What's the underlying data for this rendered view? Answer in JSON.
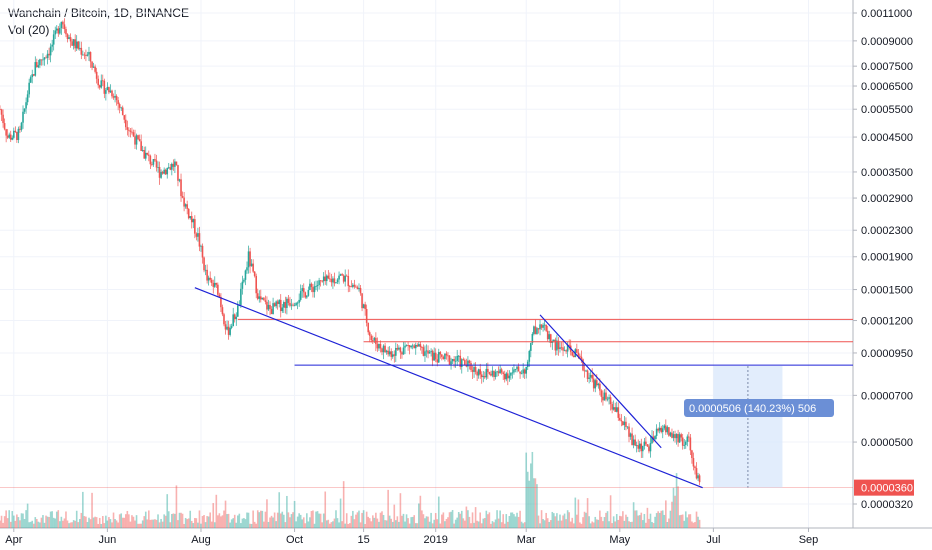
{
  "header": {
    "symbol_line": "Wanchain / Bitcoin, 1D, BINANCE",
    "volume_line": "Vol (20)"
  },
  "colors": {
    "up": "#26a69a",
    "down": "#ef5350",
    "trendline": "#1e22d6",
    "resistance": "#ef5350",
    "measure_fill": "#dbe8fb",
    "label_box": "#6b8fd6",
    "last_price_box": "#ef5350"
  },
  "chart_data": {
    "type": "candlestick",
    "title": "Wanchain / Bitcoin, 1D, BINANCE",
    "y_scale": "log",
    "y_ticks": [
      "0.0011000",
      "0.0009000",
      "0.0007500",
      "0.0006500",
      "0.0005500",
      "0.0004500",
      "0.0003500",
      "0.0002900",
      "0.0002300",
      "0.0001900",
      "0.0001500",
      "0.0001200",
      "0.0000950",
      "0.0000700",
      "0.0000500",
      "0.0000320"
    ],
    "x_ticks": [
      "Apr",
      "Jun",
      "Aug",
      "Oct",
      "15",
      "2019",
      "Mar",
      "May",
      "Jul",
      "Sep"
    ],
    "x_range": [
      "2018-03-23",
      "2019-09-30"
    ],
    "price_path": [
      [
        "2018-03-23",
        0.00055
      ],
      [
        "2018-03-28",
        0.00045
      ],
      [
        "2018-04-05",
        0.00046
      ],
      [
        "2018-04-10",
        0.00062
      ],
      [
        "2018-04-15",
        0.00075
      ],
      [
        "2018-04-25",
        0.00085
      ],
      [
        "2018-05-02",
        0.00105
      ],
      [
        "2018-05-08",
        0.0009
      ],
      [
        "2018-05-20",
        0.0008
      ],
      [
        "2018-05-28",
        0.00065
      ],
      [
        "2018-06-05",
        0.00062
      ],
      [
        "2018-06-15",
        0.00048
      ],
      [
        "2018-06-25",
        0.0004
      ],
      [
        "2018-07-05",
        0.00035
      ],
      [
        "2018-07-15",
        0.00037
      ],
      [
        "2018-07-20",
        0.00029
      ],
      [
        "2018-07-30",
        0.00022
      ],
      [
        "2018-08-05",
        0.00016
      ],
      [
        "2018-08-12",
        0.00015
      ],
      [
        "2018-08-18",
        0.00011
      ],
      [
        "2018-08-25",
        0.00013
      ],
      [
        "2018-09-01",
        0.00019
      ],
      [
        "2018-09-08",
        0.00014
      ],
      [
        "2018-09-15",
        0.00013
      ],
      [
        "2018-10-01",
        0.00014
      ],
      [
        "2018-10-15",
        0.000155
      ],
      [
        "2018-11-01",
        0.000165
      ],
      [
        "2018-11-12",
        0.00015
      ],
      [
        "2018-11-20",
        0.000105
      ],
      [
        "2018-12-01",
        9.5e-05
      ],
      [
        "2018-12-15",
        0.0001
      ],
      [
        "2019-01-01",
        9.2e-05
      ],
      [
        "2019-01-15",
        9e-05
      ],
      [
        "2019-02-01",
        8.2e-05
      ],
      [
        "2019-02-20",
        8.2e-05
      ],
      [
        "2019-03-01",
        8.5e-05
      ],
      [
        "2019-03-05",
        0.00011
      ],
      [
        "2019-03-10",
        0.000118
      ],
      [
        "2019-03-20",
        0.0001
      ],
      [
        "2019-04-01",
        9.5e-05
      ],
      [
        "2019-04-10",
        8.2e-05
      ],
      [
        "2019-04-20",
        7e-05
      ],
      [
        "2019-05-01",
        6e-05
      ],
      [
        "2019-05-10",
        4.9e-05
      ],
      [
        "2019-05-20",
        4.8e-05
      ],
      [
        "2019-05-28",
        5.6e-05
      ],
      [
        "2019-06-05",
        5.2e-05
      ],
      [
        "2019-06-15",
        5e-05
      ],
      [
        "2019-06-22",
        3.6e-05
      ]
    ],
    "horizontal_lines": [
      0.000121,
      0.000103,
      8.7e-05
    ],
    "trendlines": [
      {
        "from": [
          "2018-07-28",
          0.000152
        ],
        "to": [
          "2019-06-24",
          3.6e-05
        ]
      },
      {
        "from": [
          "2019-03-10",
          0.000125
        ],
        "to": [
          "2019-05-28",
          4.8e-05
        ]
      }
    ],
    "measure": {
      "from": [
        "2019-07-01",
        3.6e-05
      ],
      "to": [
        "2019-08-15",
        8.65e-05
      ],
      "label": "0.0000506 (140.23%) 506"
    },
    "last_price": "0.0000360",
    "volume": {
      "name": "Vol (20)"
    }
  }
}
